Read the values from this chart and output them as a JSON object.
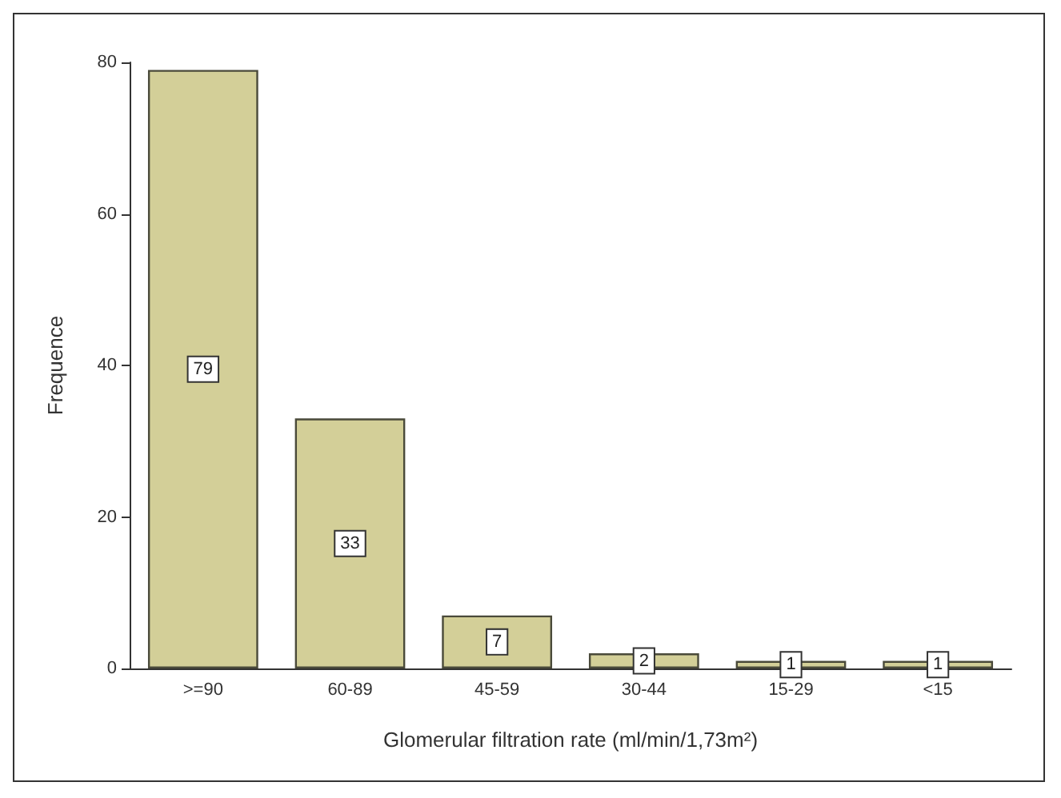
{
  "chart_data": {
    "type": "bar",
    "xlabel": "Glomerular filtration rate (ml/min/1,73m²)",
    "ylabel": "Frequence",
    "categories": [
      ">=90",
      "60-89",
      "45-59",
      "30-44",
      "15-29",
      "<15"
    ],
    "values": [
      79,
      33,
      7,
      2,
      1,
      1
    ],
    "color": "#d3cf98",
    "ylim": [
      0,
      80
    ],
    "yticks": [
      0,
      20,
      40,
      60,
      80
    ],
    "grid": false,
    "data_labels": true
  }
}
